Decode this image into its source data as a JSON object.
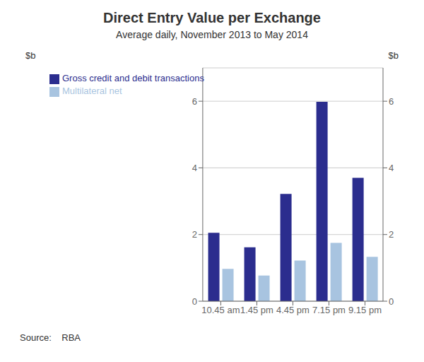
{
  "chart_data": {
    "type": "bar",
    "title": "Direct Entry Value per Exchange",
    "subtitle": "Average daily, November 2013 to May 2014",
    "ylabel": "$b",
    "y2label": "$b",
    "annotations": [
      "Source:    RBA"
    ],
    "categories": [
      "10.45 am",
      "1.45 pm",
      "4.45 pm",
      "7.15 pm",
      "9.15 pm"
    ],
    "series": [
      {
        "name": "Gross credit and debit transactions",
        "color": "#2B2D8E",
        "values": [
          2.05,
          1.62,
          3.22,
          5.98,
          3.7
        ]
      },
      {
        "name": "Multilateral net",
        "color": "#A8C4E0",
        "values": [
          0.97,
          0.77,
          1.22,
          1.75,
          1.33
        ]
      }
    ],
    "ylim": [
      0,
      7
    ],
    "yticks": [
      0,
      2,
      4,
      6
    ],
    "y2lim": [
      0,
      7
    ],
    "y2ticks": [
      0,
      2,
      4,
      6
    ],
    "grid": true,
    "legend": "upper left"
  }
}
